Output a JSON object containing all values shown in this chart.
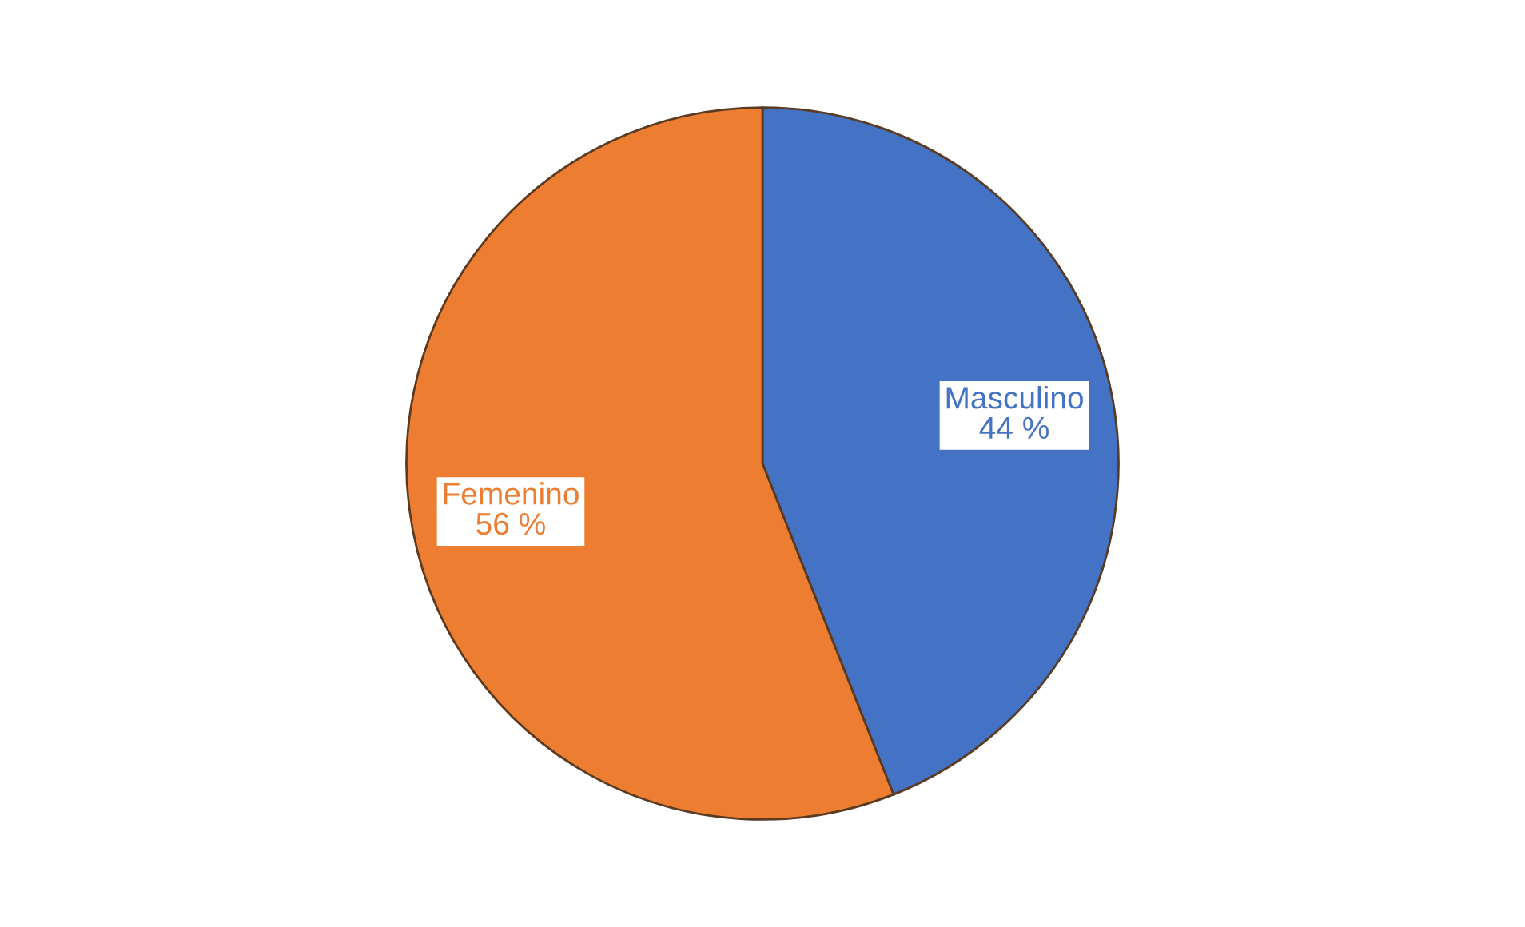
{
  "chart_data": {
    "type": "pie",
    "categories": [
      "Masculino",
      "Femenino"
    ],
    "values": [
      44,
      56
    ],
    "colors": [
      "#4472c4",
      "#ed7d31"
    ],
    "value_labels": [
      "44 %",
      "56 %"
    ],
    "legend": false
  }
}
